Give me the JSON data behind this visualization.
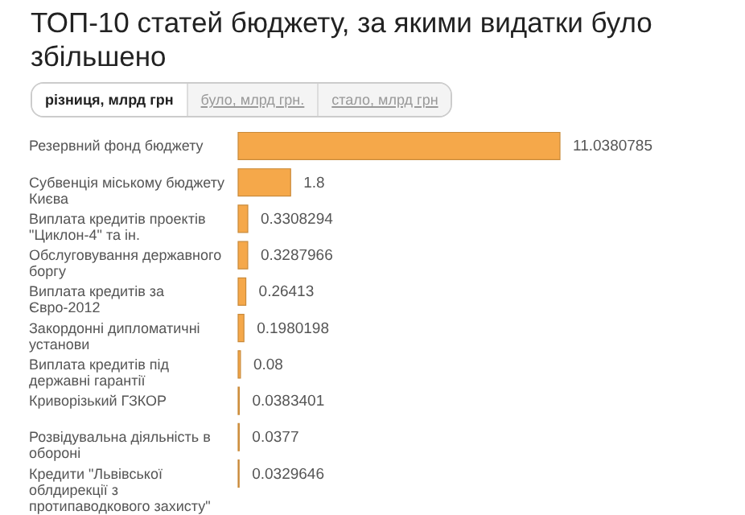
{
  "chart_data": {
    "type": "bar",
    "orientation": "horizontal",
    "title": "ТОП-10 статей бюджету, за якими видатки було збільшено",
    "annotations": [
      "різниця, млрд грн",
      "було, млрд грн.",
      "стало, млрд грн"
    ],
    "categories": [
      "Резервний фонд бюджету",
      "Субвенція міському бюджету Києва",
      "Виплата кредитів проектів \"Циклон-4\" та ін.",
      "Обслуговування державного боргу",
      "Виплата кредитів за Євро-2012",
      "Закордонні дипломатичні установи",
      "Виплата кредитів під державні гарантії",
      "Криворізький ГЗКОР",
      "Розвідувальна діяльність в обороні",
      "Кредити \"Львівської облдирекції з протипаводкового захисту\""
    ],
    "values": [
      11.0380785,
      1.8,
      0.3308294,
      0.3287966,
      0.26413,
      0.1980198,
      0.08,
      0.0383401,
      0.0377,
      0.0329646
    ],
    "color": "#f5a84a",
    "data_labels": true
  }
}
